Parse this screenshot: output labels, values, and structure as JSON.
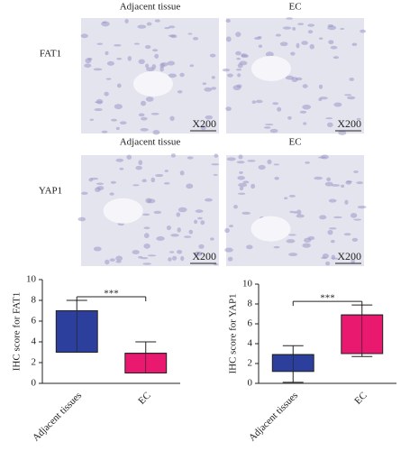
{
  "image_panels": {
    "rows": [
      {
        "label": "FAT1",
        "columns": [
          "Adjacent tissue",
          "EC"
        ],
        "scales": [
          "X200",
          "X200"
        ]
      },
      {
        "label": "YAP1",
        "columns": [
          "Adjacent tissue",
          "EC"
        ],
        "scales": [
          "X200",
          "X200"
        ]
      }
    ]
  },
  "chart_data": [
    {
      "type": "box",
      "ylabel": "IHC score for FAT1",
      "categories": [
        "Adjacent tissues",
        "EC"
      ],
      "boxes": [
        {
          "min": 3,
          "q1": 3,
          "median": 7,
          "q3": 7,
          "max": 8,
          "color": "#2c3f9c"
        },
        {
          "min": 1,
          "q1": 1,
          "median": 2.9,
          "q3": 2.9,
          "max": 4,
          "color": "#e8196f"
        }
      ],
      "annotation": "***",
      "ylim": [
        0,
        10
      ],
      "yticks": [
        0,
        2,
        4,
        6,
        8,
        10
      ]
    },
    {
      "type": "box",
      "ylabel": "IHC score for YAP1",
      "categories": [
        "Adjacent tissues",
        "EC"
      ],
      "boxes": [
        {
          "min": 0.1,
          "q1": 1.2,
          "median": 2.9,
          "q3": 2.9,
          "max": 3.8,
          "color": "#2c3f9c"
        },
        {
          "min": 2.7,
          "q1": 3,
          "median": 6.9,
          "q3": 6.9,
          "max": 7.9,
          "color": "#e8196f"
        }
      ],
      "annotation": "***",
      "ylim": [
        0,
        10
      ],
      "yticks": [
        0,
        2,
        4,
        6,
        8,
        10
      ]
    }
  ]
}
